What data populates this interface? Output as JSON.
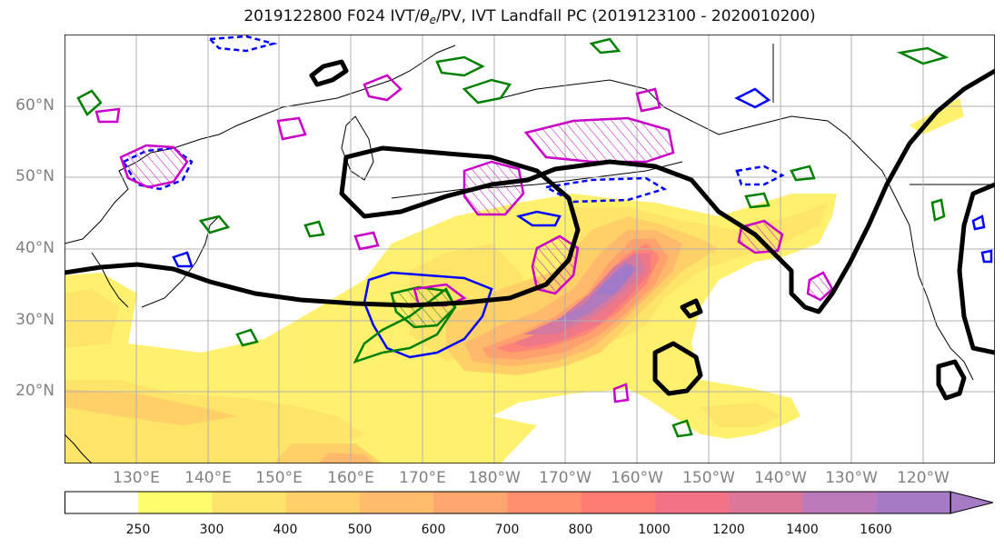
{
  "title": {
    "prefix": "2019122800 F024 IVT/",
    "theta": "θ",
    "sub": "e",
    "suffix": "/PV, IVT Landfall PC (2019123100 - 2020010200)"
  },
  "map": {
    "lat_labels": [
      "60°N",
      "50°N",
      "40°N",
      "30°N",
      "20°N"
    ],
    "lon_labels": [
      "130°E",
      "140°E",
      "150°E",
      "160°E",
      "170°E",
      "180°W",
      "170°W",
      "160°W",
      "150°W",
      "140°W",
      "130°W",
      "120°W"
    ],
    "lon_range": [
      120,
      250
    ],
    "lat_range": [
      10,
      70
    ],
    "fill_colors": [
      "#ffff66",
      "#ffe566",
      "#ffd166",
      "#ffb866",
      "#ff9e6e",
      "#ff8a7a",
      "#f07a8a",
      "#d87aa0",
      "#b87ab8",
      "#a27ac6"
    ],
    "contour_colors": {
      "black": "#000000",
      "magenta": "#c800c8",
      "green": "#008000",
      "blue": "#0000ff"
    }
  },
  "colorbar": {
    "tick_labels": [
      "250",
      "300",
      "400",
      "500",
      "600",
      "700",
      "800",
      "1000",
      "1200",
      "1400",
      "1600"
    ],
    "colors": [
      "#ffffff",
      "#ffff6e",
      "#ffe36b",
      "#ffcf6a",
      "#ffbc6d",
      "#ffa56e",
      "#ff8f6e",
      "#ff7c74",
      "#f27385",
      "#dc779a",
      "#bd7aba",
      "#a67ac4"
    ]
  }
}
